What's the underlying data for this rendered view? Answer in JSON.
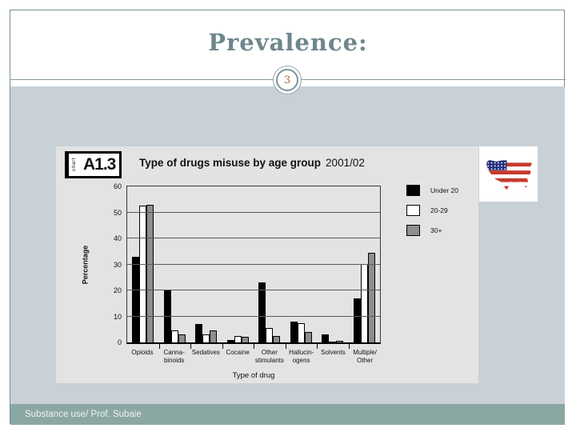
{
  "slide": {
    "title": "Prevalence:",
    "page_number": "3",
    "footer": "Substance use/ Prof. Subaie"
  },
  "chart_badge": {
    "side_label": "chart",
    "code": "A1.3"
  },
  "chart_data": {
    "type": "bar",
    "title": "Type of drugs misuse by age group",
    "title_suffix": "2001/02",
    "xlabel": "Type of drug",
    "ylabel": "Percentage",
    "ylim": [
      0,
      60
    ],
    "yticks": [
      0,
      10,
      20,
      30,
      40,
      50,
      60
    ],
    "grid": true,
    "legend_position": "right",
    "categories": [
      "Opioids",
      "Canna-\nbinoids",
      "Sedatives",
      "Cocaine",
      "Other\nstimulants",
      "Hallucin-\nogens",
      "Solvents",
      "Multiple/\nOther"
    ],
    "series": [
      {
        "name": "Under 20",
        "color": "#000000",
        "values": [
          33,
          20,
          7,
          1,
          23,
          8,
          3,
          17
        ]
      },
      {
        "name": "20-29",
        "color": "#ffffff",
        "values": [
          52.5,
          4.5,
          3,
          2.5,
          5.5,
          7.5,
          0.3,
          30
        ]
      },
      {
        "name": "30+",
        "color": "#8e8e8e",
        "values": [
          53,
          3,
          4.5,
          2.3,
          2.5,
          4,
          0.5,
          34.5
        ]
      }
    ]
  },
  "flag_image": {
    "alt": "united-states-flag-map"
  },
  "colors": {
    "accent_slate": "#6e868c",
    "page_number_text": "#b2663f",
    "content_background": "#c8d1d6",
    "footer_background": "#8ba7a3",
    "chart_background": "#e3e3e4",
    "flag_red": "#c63a2c",
    "flag_blue": "#25317d"
  }
}
